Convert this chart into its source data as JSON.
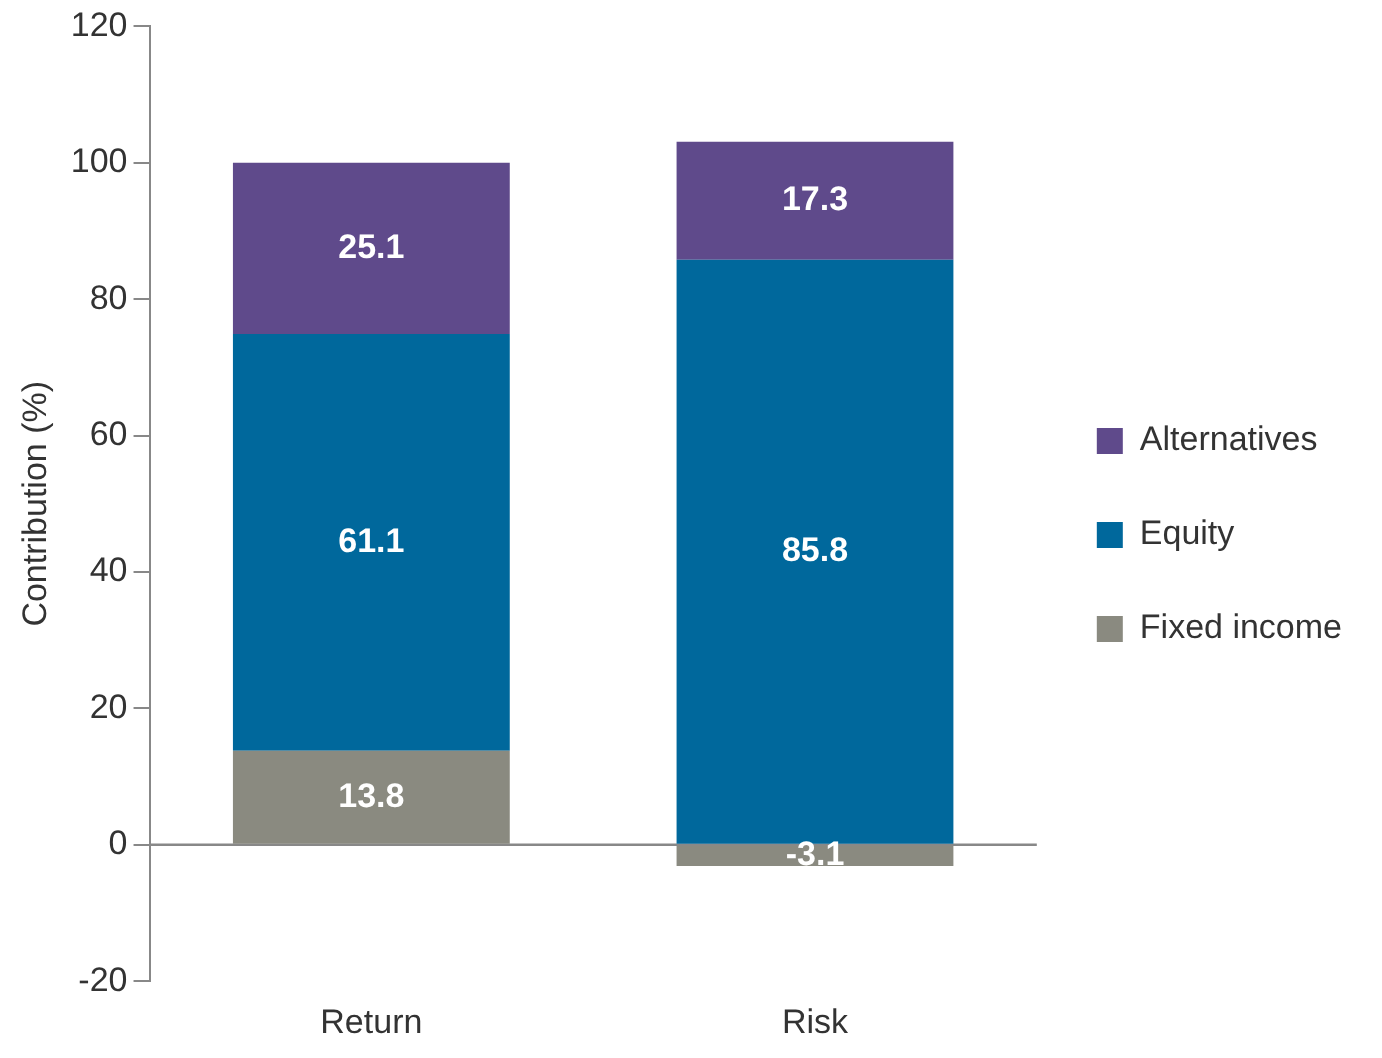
{
  "chart_data": {
    "type": "bar",
    "stacked": true,
    "ylabel": "Contribution (%)",
    "categories": [
      "Return",
      "Risk"
    ],
    "series": [
      {
        "name": "Fixed income",
        "color": "#8a8a80",
        "values": [
          13.8,
          -3.1
        ]
      },
      {
        "name": "Equity",
        "color": "#00689c",
        "values": [
          61.1,
          85.8
        ]
      },
      {
        "name": "Alternatives",
        "color": "#5f4a8b",
        "values": [
          25.1,
          17.3
        ]
      }
    ],
    "ylim": [
      -20,
      120
    ],
    "yticks": [
      -20,
      0,
      20,
      40,
      60,
      80,
      100,
      120
    ],
    "grid": false,
    "ref_lines": [
      {
        "axis": "y",
        "value": 0,
        "color": "#888888"
      }
    ],
    "legend": "right",
    "data_labels": true
  }
}
